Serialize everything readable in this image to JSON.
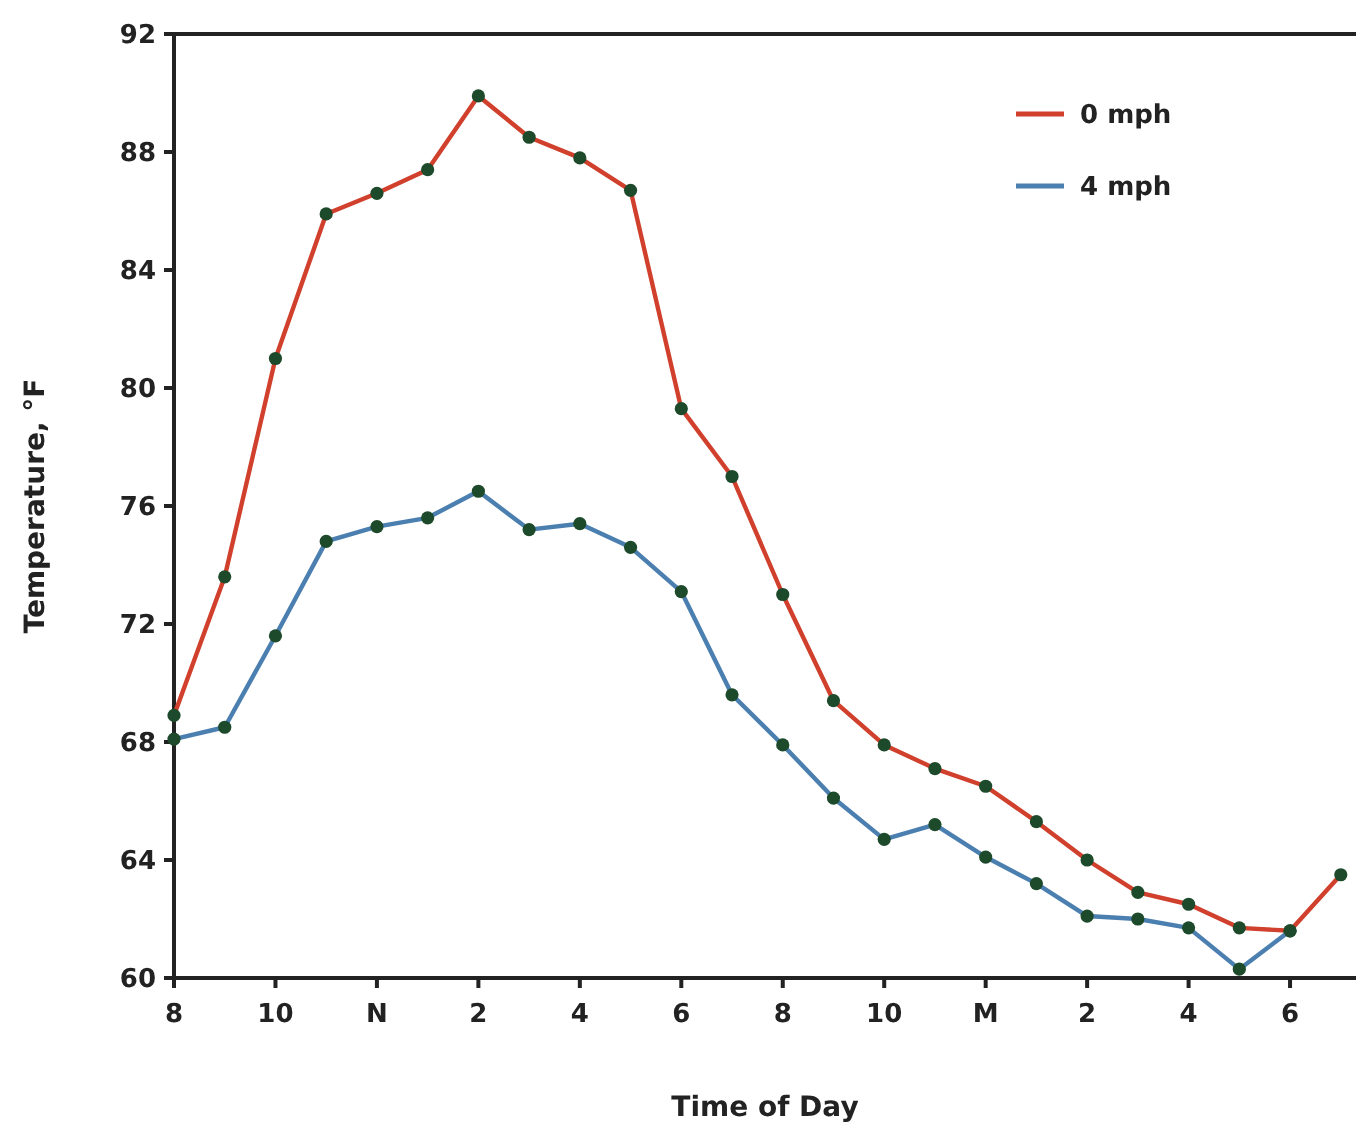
{
  "chart_data": {
    "type": "line",
    "xlabel": "Time of Day",
    "ylabel": "Temperature, °F",
    "categories": [
      "8",
      null,
      "10",
      null,
      "N",
      null,
      "2",
      null,
      "4",
      null,
      "6",
      null,
      "8",
      null,
      "10",
      null,
      "M",
      null,
      "2",
      null,
      "4",
      null,
      "6",
      null
    ],
    "series": [
      {
        "name": "0 mph",
        "color": "#d0402c",
        "values": [
          68.9,
          73.6,
          81,
          85.9,
          86.6,
          87.4,
          89.9,
          88.5,
          87.8,
          86.7,
          79.3,
          77,
          73,
          69.4,
          67.9,
          67.1,
          66.5,
          65.3,
          64,
          62.9,
          62.5,
          61.7,
          61.6,
          63.5
        ]
      },
      {
        "name": "4 mph",
        "color": "#4a7fb0",
        "values": [
          68.1,
          68.5,
          71.6,
          74.8,
          75.3,
          75.6,
          76.5,
          75.2,
          75.4,
          74.6,
          73.1,
          69.6,
          67.9,
          66.1,
          64.7,
          65.2,
          64.1,
          63.2,
          62.1,
          62,
          61.7,
          60.3,
          61.6,
          null
        ]
      }
    ],
    "ylim": [
      60,
      92
    ],
    "yticks": [
      60,
      64,
      68,
      72,
      76,
      80,
      84,
      88,
      92
    ],
    "legend": "top right",
    "marker": "circle",
    "line_style": "solid",
    "grid": false
  }
}
